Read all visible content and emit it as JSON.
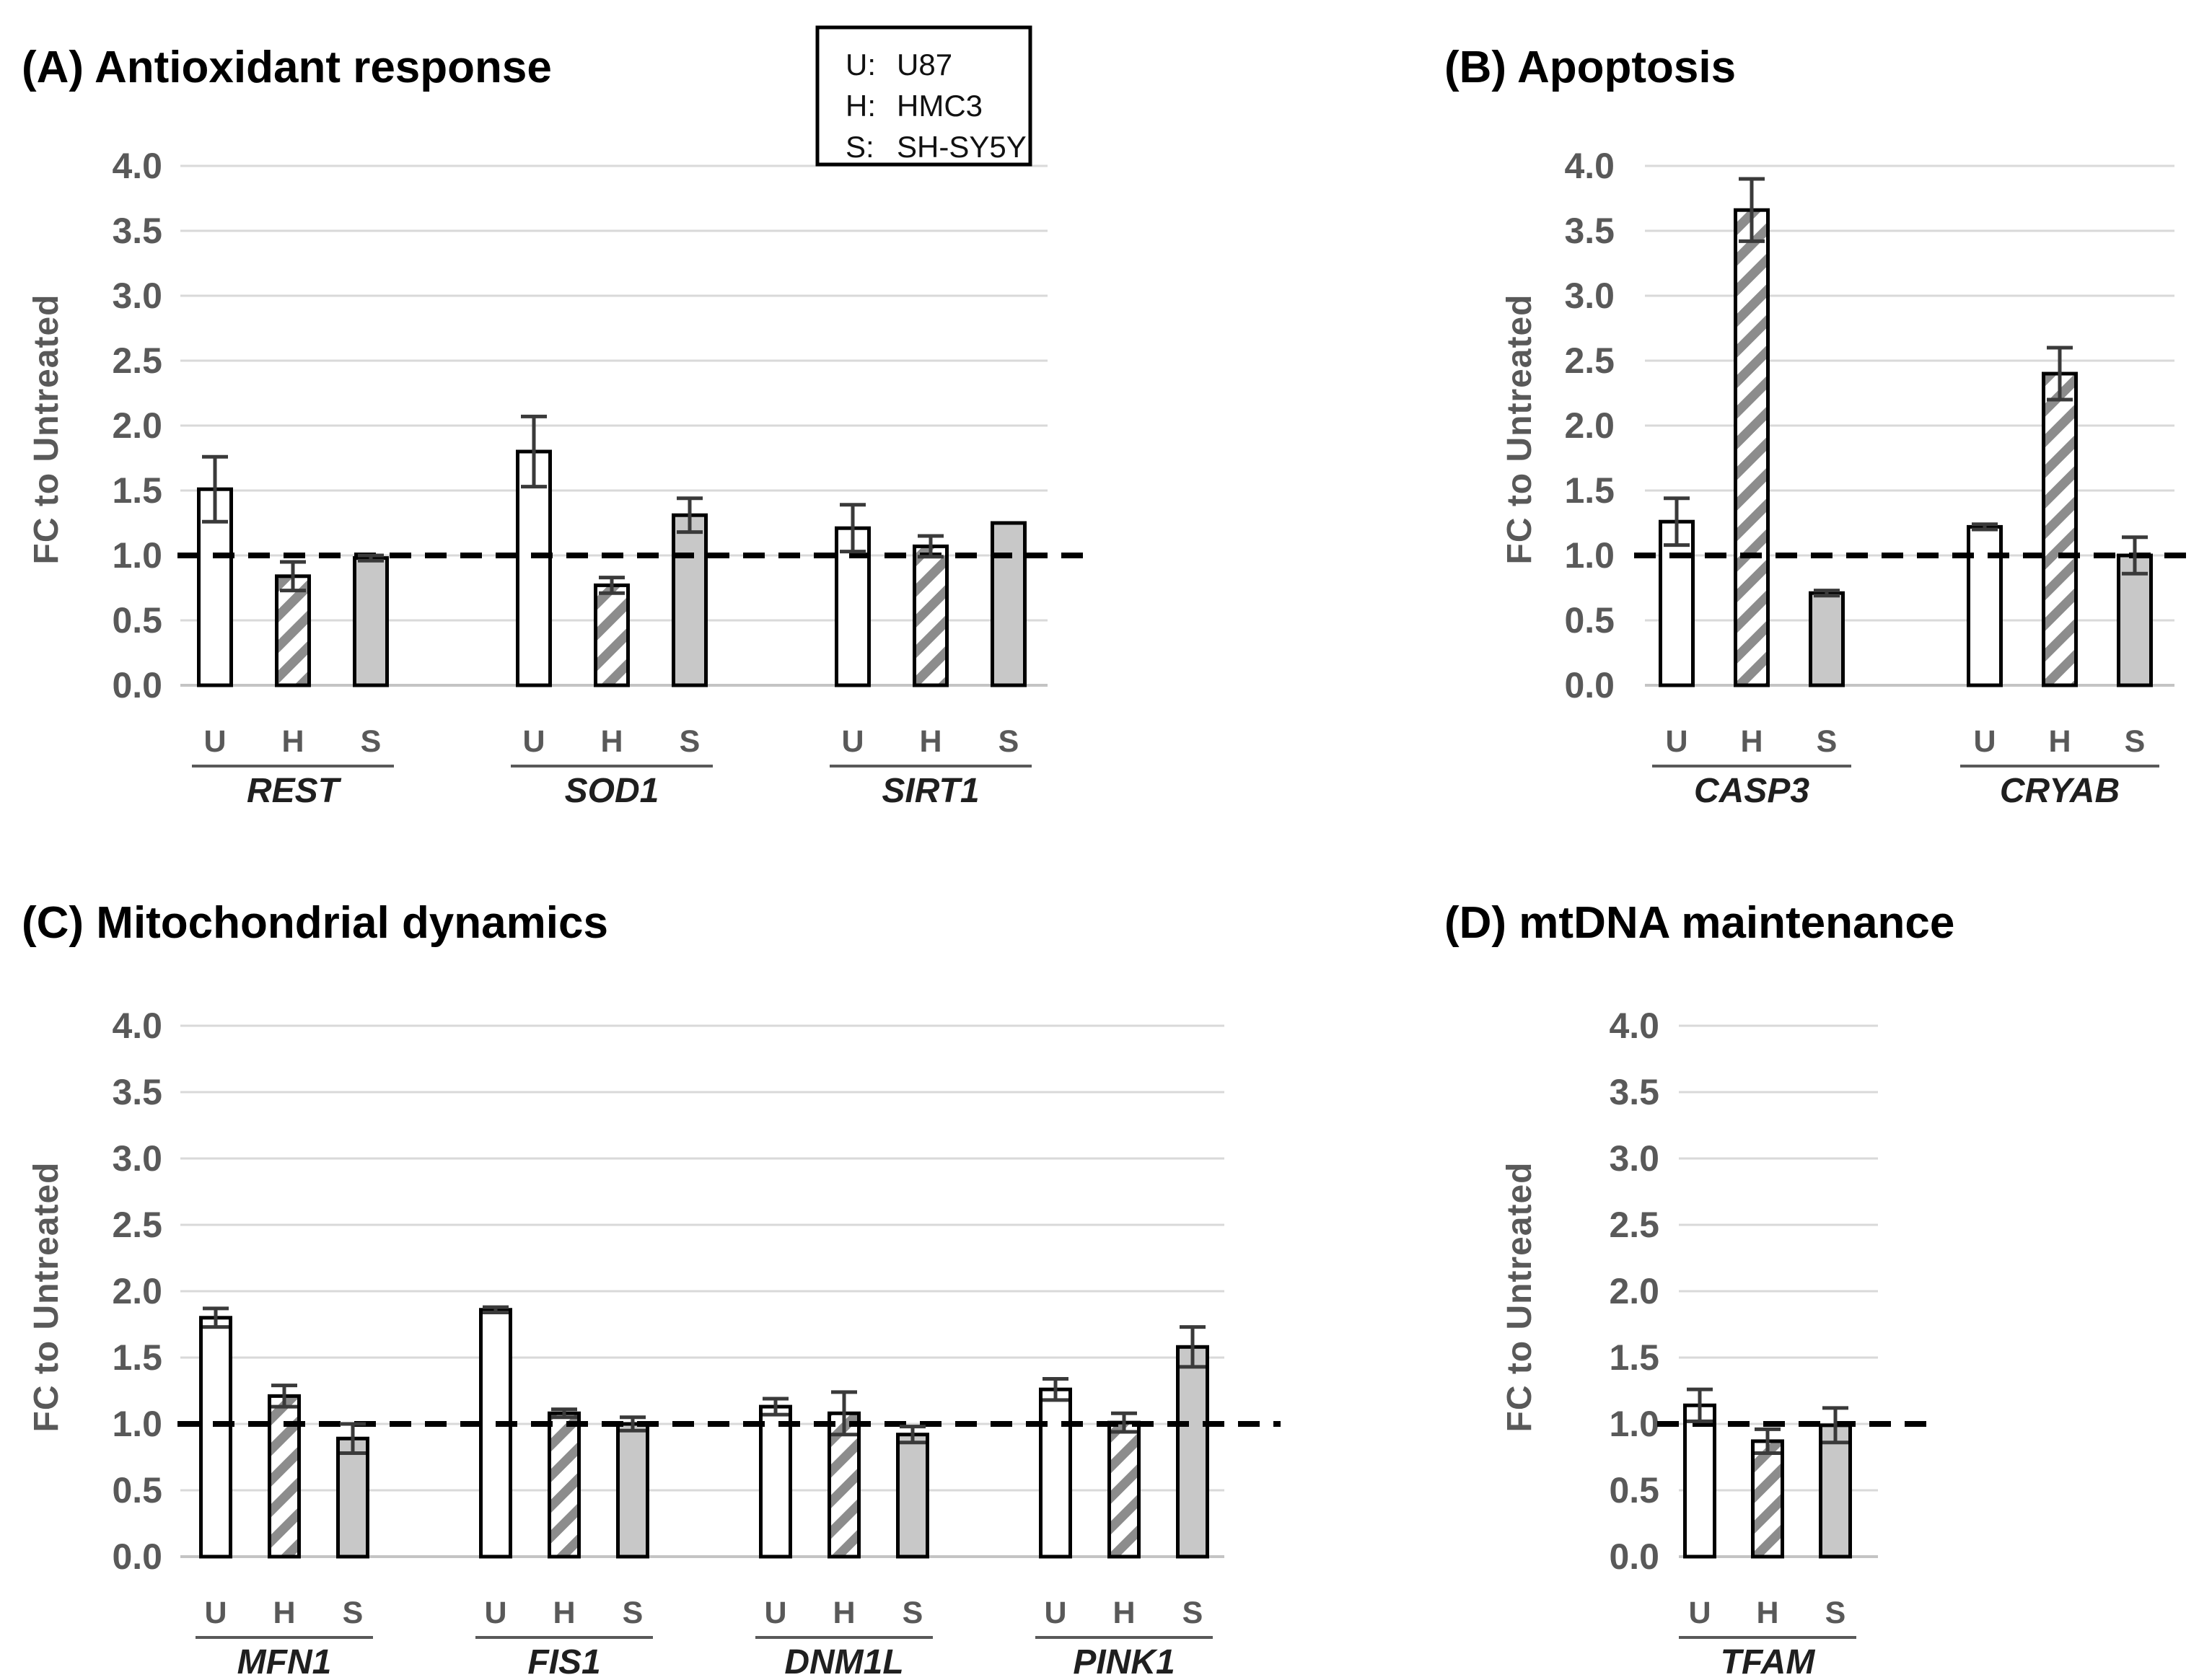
{
  "figure": {
    "ylabel": "FC to Untreated",
    "legend": {
      "entries": [
        {
          "key": "U:",
          "value": "U87"
        },
        {
          "key": "H:",
          "value": "HMC3"
        },
        {
          "key": "S:",
          "value": "SH-SY5Y"
        }
      ]
    },
    "series": [
      {
        "key": "U",
        "label": "U87",
        "style": "open-white"
      },
      {
        "key": "H",
        "label": "HMC3",
        "style": "diagonal-hatch"
      },
      {
        "key": "S",
        "label": "SH-SY5Y",
        "style": "solid-gray"
      }
    ],
    "colors": {
      "gridline": "#d9d9d9",
      "baseline": "#c4c4c4",
      "axis_text": "#595959",
      "bar_border": "#000000",
      "bar_gray_fill": "#c8c8c8",
      "hatch_stripe": "#8c8c8c",
      "reference_line": "#000000",
      "error_bar": "#3a3a3a"
    }
  },
  "chart_data": [
    {
      "id": "A",
      "type": "bar",
      "title": "(A) Antioxidant response",
      "ylabel": "FC to Untreated",
      "ylim": [
        0.0,
        4.0
      ],
      "ytick_step": 0.5,
      "grid": true,
      "reference_line": 1.0,
      "series": [
        "U",
        "H",
        "S"
      ],
      "groups": [
        {
          "gene": "REST",
          "values": [
            1.51,
            0.84,
            0.98
          ],
          "errors": [
            0.25,
            0.11,
            0.02
          ]
        },
        {
          "gene": "SOD1",
          "values": [
            1.8,
            0.77,
            1.31
          ],
          "errors": [
            0.27,
            0.06,
            0.13
          ]
        },
        {
          "gene": "SIRT1",
          "values": [
            1.21,
            1.07,
            1.25
          ],
          "errors": [
            0.18,
            0.08,
            0.0
          ]
        }
      ]
    },
    {
      "id": "B",
      "type": "bar",
      "title": "(B) Apoptosis",
      "ylabel": "FC to Untreated",
      "ylim": [
        0.0,
        4.0
      ],
      "ytick_step": 0.5,
      "grid": true,
      "reference_line": 1.0,
      "series": [
        "U",
        "H",
        "S"
      ],
      "groups": [
        {
          "gene": "CASP3",
          "values": [
            1.26,
            3.66,
            0.71
          ],
          "errors": [
            0.18,
            0.24,
            0.02
          ]
        },
        {
          "gene": "CRYAB",
          "values": [
            1.22,
            2.4,
            1.0
          ],
          "errors": [
            0.02,
            0.2,
            0.14
          ]
        }
      ]
    },
    {
      "id": "C",
      "type": "bar",
      "title": "(C) Mitochondrial dynamics",
      "ylabel": "FC to Untreated",
      "ylim": [
        0.0,
        4.0
      ],
      "ytick_step": 0.5,
      "grid": true,
      "reference_line": 1.0,
      "series": [
        "U",
        "H",
        "S"
      ],
      "groups": [
        {
          "gene": "MFN1",
          "values": [
            1.8,
            1.21,
            0.89
          ],
          "errors": [
            0.07,
            0.08,
            0.11
          ]
        },
        {
          "gene": "FIS1",
          "values": [
            1.86,
            1.08,
            1.0
          ],
          "errors": [
            0.02,
            0.03,
            0.05
          ]
        },
        {
          "gene": "DNM1L",
          "values": [
            1.13,
            1.08,
            0.92
          ],
          "errors": [
            0.06,
            0.16,
            0.06
          ]
        },
        {
          "gene": "PINK1",
          "values": [
            1.26,
            1.01,
            1.58
          ],
          "errors": [
            0.08,
            0.07,
            0.15
          ]
        }
      ]
    },
    {
      "id": "D",
      "type": "bar",
      "title": "(D) mtDNA maintenance",
      "ylabel": "FC to Untreated",
      "ylim": [
        0.0,
        4.0
      ],
      "ytick_step": 0.5,
      "grid": true,
      "reference_line": 1.0,
      "series": [
        "U",
        "H",
        "S"
      ],
      "groups": [
        {
          "gene": "TFAM",
          "values": [
            1.14,
            0.87,
            0.99
          ],
          "errors": [
            0.12,
            0.09,
            0.13
          ]
        }
      ]
    }
  ]
}
